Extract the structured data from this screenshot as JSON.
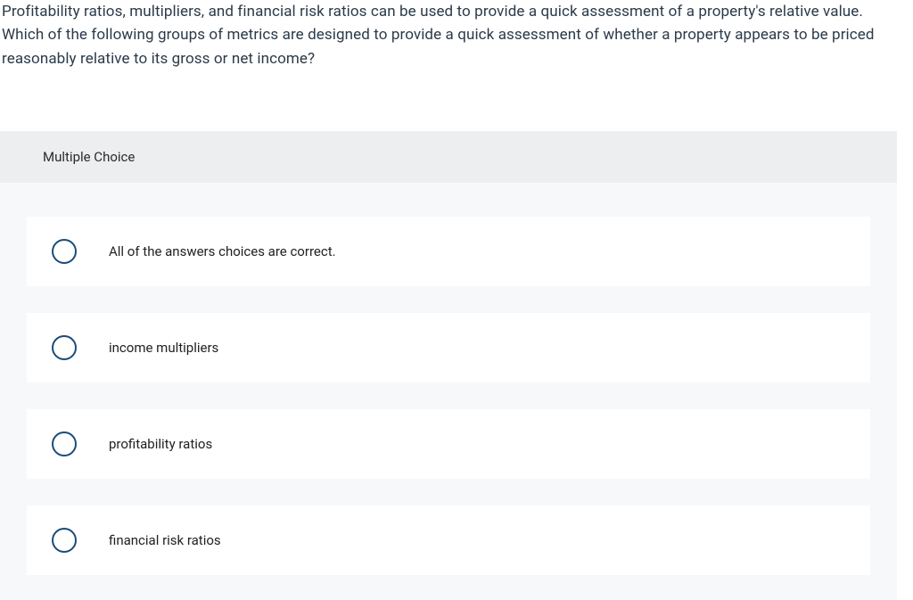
{
  "question": {
    "text": "Profitability ratios, multipliers, and financial risk ratios can be used to provide a quick assessment of a property's relative value. Which of the following groups of metrics are designed to provide a quick assessment of whether a property appears to be priced reasonably relative to its gross or net income?"
  },
  "section_label": "Multiple Choice",
  "options": [
    {
      "label": "All of the answers choices are correct."
    },
    {
      "label": "income multipliers"
    },
    {
      "label": "profitability ratios"
    },
    {
      "label": "financial risk ratios"
    }
  ],
  "styles": {
    "radio_border_color": "#1a4d7a",
    "option_bg": "#ffffff",
    "block_bg": "#f7f8f9",
    "header_bg": "#eceeef"
  }
}
